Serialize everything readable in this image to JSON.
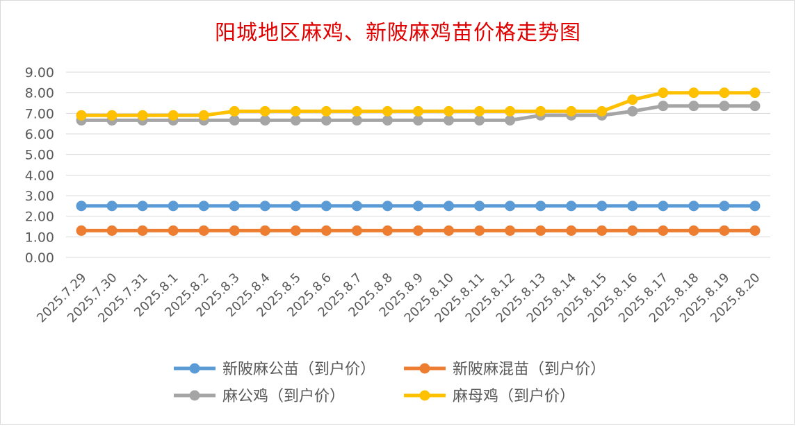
{
  "chart_data": {
    "type": "line",
    "title": "阳城地区麻鸡、新陂麻鸡苗价格走势图",
    "xlabel": "",
    "ylabel": "",
    "ylim": [
      0,
      9
    ],
    "yticks": [
      "0.00",
      "1.00",
      "2.00",
      "3.00",
      "4.00",
      "5.00",
      "6.00",
      "7.00",
      "8.00",
      "9.00"
    ],
    "grid": true,
    "legend_position": "bottom",
    "categories": [
      "2025.7.29",
      "2025.7.30",
      "2025.7.31",
      "2025.8.1",
      "2025.8.2",
      "2025.8.3",
      "2025.8.4",
      "2025.8.5",
      "2025.8.6",
      "2025.8.7",
      "2025.8.8",
      "2025.8.9",
      "2025.8.10",
      "2025.8.11",
      "2025.8.12",
      "2025.8.13",
      "2025.8.14",
      "2025.8.15",
      "2025.8.16",
      "2025.8.17",
      "2025.8.18",
      "2025.8.19",
      "2025.8.20"
    ],
    "series": [
      {
        "name": "新陂麻公苗（到户价）",
        "color": "#5b9bd5",
        "values": [
          2.5,
          2.5,
          2.5,
          2.5,
          2.5,
          2.5,
          2.5,
          2.5,
          2.5,
          2.5,
          2.5,
          2.5,
          2.5,
          2.5,
          2.5,
          2.5,
          2.5,
          2.5,
          2.5,
          2.5,
          2.5,
          2.5,
          2.5
        ]
      },
      {
        "name": "新陂麻混苗（到户价）",
        "color": "#ed7d31",
        "values": [
          1.3,
          1.3,
          1.3,
          1.3,
          1.3,
          1.3,
          1.3,
          1.3,
          1.3,
          1.3,
          1.3,
          1.3,
          1.3,
          1.3,
          1.3,
          1.3,
          1.3,
          1.3,
          1.3,
          1.3,
          1.3,
          1.3,
          1.3
        ]
      },
      {
        "name": "麻公鸡（到户价）",
        "color": "#a5a5a5",
        "values": [
          6.66,
          6.66,
          6.66,
          6.66,
          6.66,
          6.66,
          6.66,
          6.66,
          6.66,
          6.66,
          6.66,
          6.66,
          6.66,
          6.66,
          6.66,
          6.9,
          6.9,
          6.9,
          7.1,
          7.36,
          7.36,
          7.36,
          7.36
        ]
      },
      {
        "name": "麻母鸡（到户价）",
        "color": "#ffc000",
        "values": [
          6.9,
          6.9,
          6.9,
          6.9,
          6.9,
          7.1,
          7.1,
          7.1,
          7.1,
          7.1,
          7.1,
          7.1,
          7.1,
          7.1,
          7.1,
          7.1,
          7.1,
          7.1,
          7.66,
          8.0,
          8.0,
          8.0,
          8.0
        ]
      }
    ]
  }
}
